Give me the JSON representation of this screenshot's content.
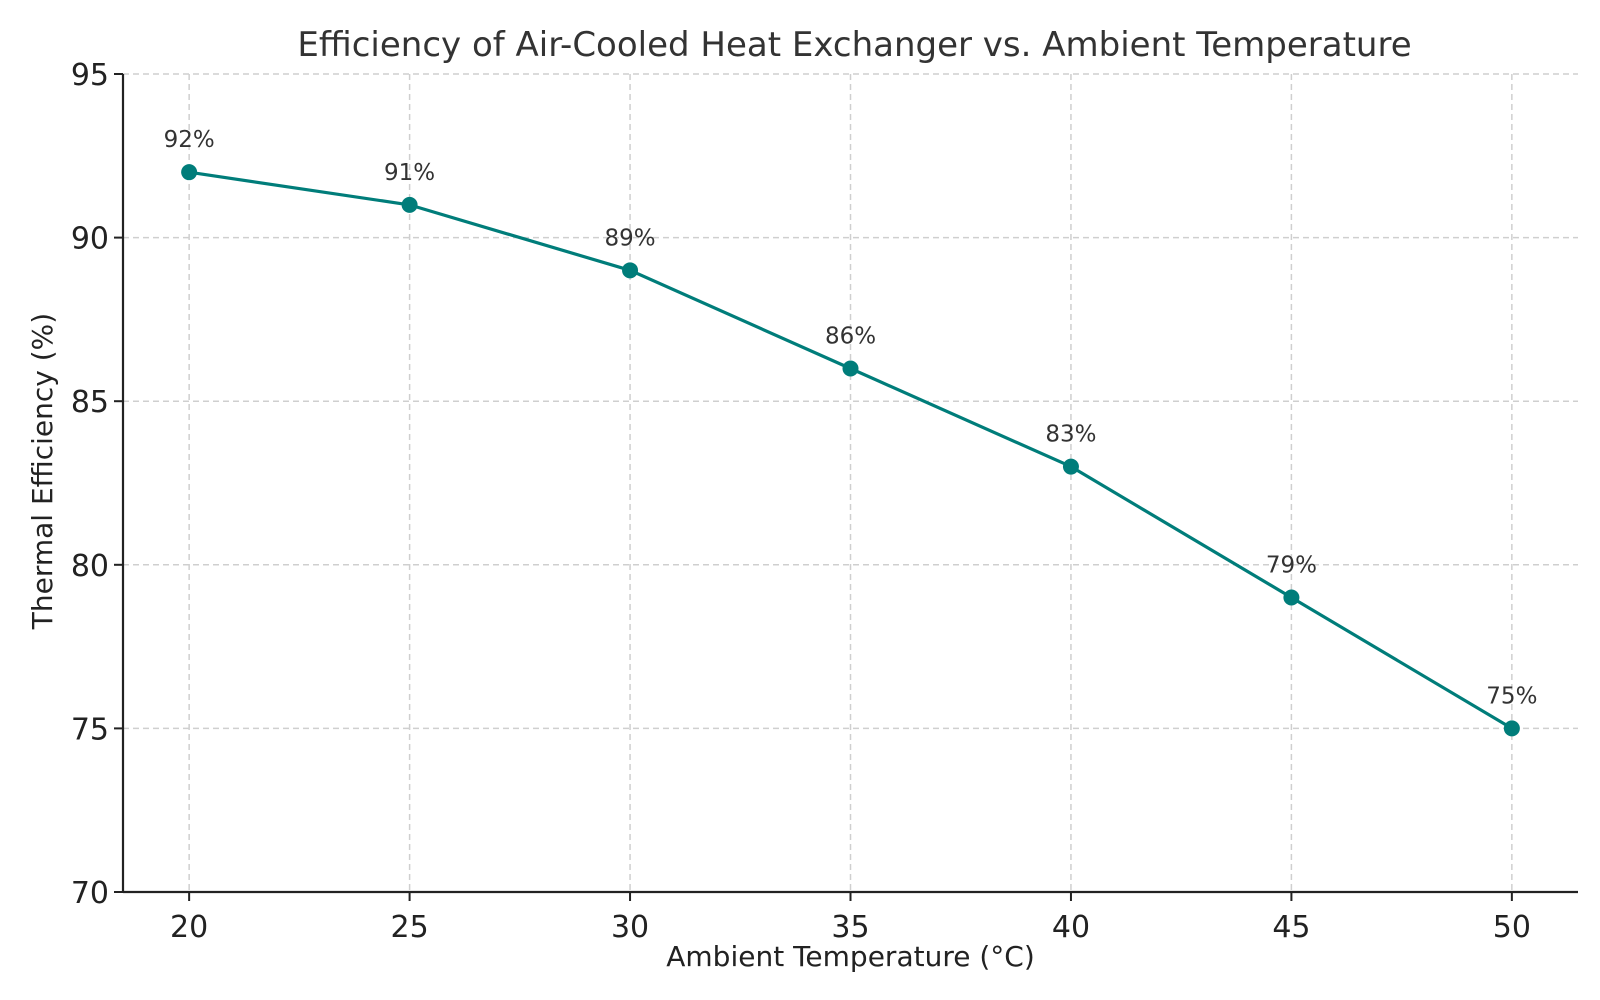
{
  "chart_data": {
    "type": "line",
    "title": "Efficiency of Air-Cooled Heat Exchanger vs. Ambient Temperature",
    "xlabel": "Ambient Temperature (°C)",
    "ylabel": "Thermal Efficiency (%)",
    "x": [
      20,
      25,
      30,
      35,
      40,
      45,
      50
    ],
    "series": [
      {
        "name": "Thermal Efficiency",
        "values": [
          92,
          91,
          89,
          86,
          83,
          79,
          75
        ],
        "color": "#007d7a"
      }
    ],
    "data_labels": [
      "92%",
      "91%",
      "89%",
      "86%",
      "83%",
      "79%",
      "75%"
    ],
    "xlim": [
      18.5,
      51.5
    ],
    "ylim": [
      70,
      95
    ],
    "x_ticks": [
      20,
      25,
      30,
      35,
      40,
      45,
      50
    ],
    "y_ticks": [
      70,
      75,
      80,
      85,
      90,
      95
    ],
    "grid": true
  }
}
